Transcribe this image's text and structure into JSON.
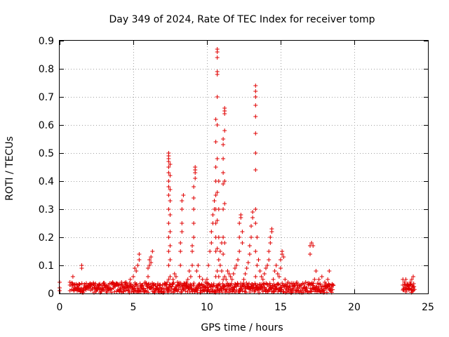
{
  "chart_data": {
    "type": "scatter",
    "title": "Day 349 of 2024, Rate Of TEC Index for receiver tomp",
    "xlabel": "GPS time / hours",
    "ylabel": "ROTI / TECUs",
    "xlim": [
      0,
      25
    ],
    "ylim": [
      0,
      0.9
    ],
    "xticks": [
      "0",
      "5",
      "10",
      "15",
      "20",
      "25"
    ],
    "yticks": [
      "0",
      "0.1",
      "0.2",
      "0.3",
      "0.4",
      "0.5",
      "0.6",
      "0.7",
      "0.8",
      "0.9"
    ],
    "grid": true,
    "marker": "+",
    "color": "#e00000",
    "series": [
      {
        "points": [
          [
            0.0,
            0.01
          ],
          [
            0.0,
            0.02
          ],
          [
            0.0,
            0.04
          ],
          [
            0.7,
            0.01
          ],
          [
            0.7,
            0.03
          ],
          [
            0.7,
            0.04
          ],
          [
            0.9,
            0.06
          ],
          [
            1.2,
            0.03
          ],
          [
            1.5,
            0.09
          ],
          [
            1.5,
            0.1
          ],
          [
            1.0,
            0.02
          ],
          [
            1.3,
            0.03
          ],
          [
            1.8,
            0.02
          ],
          [
            2.1,
            0.03
          ],
          [
            2.4,
            0.02
          ],
          [
            2.7,
            0.03
          ],
          [
            3.0,
            0.02
          ],
          [
            3.3,
            0.03
          ],
          [
            3.6,
            0.04
          ],
          [
            3.9,
            0.03
          ],
          [
            4.2,
            0.04
          ],
          [
            4.5,
            0.04
          ],
          [
            4.8,
            0.05
          ],
          [
            5.0,
            0.06
          ],
          [
            5.1,
            0.09
          ],
          [
            5.2,
            0.08
          ],
          [
            5.3,
            0.1
          ],
          [
            5.4,
            0.12
          ],
          [
            5.4,
            0.14
          ],
          [
            5.6,
            0.03
          ],
          [
            5.8,
            0.04
          ],
          [
            6.0,
            0.06
          ],
          [
            6.0,
            0.09
          ],
          [
            6.1,
            0.1
          ],
          [
            6.1,
            0.12
          ],
          [
            6.2,
            0.11
          ],
          [
            6.2,
            0.13
          ],
          [
            6.3,
            0.15
          ],
          [
            6.5,
            0.03
          ],
          [
            6.8,
            0.03
          ],
          [
            7.1,
            0.03
          ],
          [
            7.3,
            0.04
          ],
          [
            7.4,
            0.05
          ],
          [
            7.4,
            0.1
          ],
          [
            7.4,
            0.15
          ],
          [
            7.4,
            0.2
          ],
          [
            7.4,
            0.25
          ],
          [
            7.4,
            0.3
          ],
          [
            7.4,
            0.35
          ],
          [
            7.4,
            0.38
          ],
          [
            7.4,
            0.4
          ],
          [
            7.4,
            0.43
          ],
          [
            7.4,
            0.45
          ],
          [
            7.4,
            0.47
          ],
          [
            7.4,
            0.48
          ],
          [
            7.4,
            0.49
          ],
          [
            7.4,
            0.5
          ],
          [
            7.5,
            0.06
          ],
          [
            7.5,
            0.12
          ],
          [
            7.5,
            0.17
          ],
          [
            7.5,
            0.22
          ],
          [
            7.5,
            0.28
          ],
          [
            7.5,
            0.33
          ],
          [
            7.5,
            0.37
          ],
          [
            7.5,
            0.42
          ],
          [
            7.5,
            0.46
          ],
          [
            7.7,
            0.05
          ],
          [
            7.8,
            0.07
          ],
          [
            7.9,
            0.06
          ],
          [
            8.0,
            0.04
          ],
          [
            8.2,
            0.1
          ],
          [
            8.2,
            0.15
          ],
          [
            8.2,
            0.18
          ],
          [
            8.3,
            0.22
          ],
          [
            8.3,
            0.25
          ],
          [
            8.3,
            0.3
          ],
          [
            8.3,
            0.33
          ],
          [
            8.4,
            0.35
          ],
          [
            8.6,
            0.04
          ],
          [
            8.7,
            0.05
          ],
          [
            8.8,
            0.08
          ],
          [
            8.9,
            0.06
          ],
          [
            9.0,
            0.1
          ],
          [
            9.0,
            0.15
          ],
          [
            9.0,
            0.17
          ],
          [
            9.1,
            0.2
          ],
          [
            9.1,
            0.25
          ],
          [
            9.1,
            0.3
          ],
          [
            9.1,
            0.34
          ],
          [
            9.1,
            0.38
          ],
          [
            9.2,
            0.41
          ],
          [
            9.2,
            0.43
          ],
          [
            9.2,
            0.44
          ],
          [
            9.2,
            0.45
          ],
          [
            9.3,
            0.08
          ],
          [
            9.4,
            0.1
          ],
          [
            9.5,
            0.06
          ],
          [
            9.7,
            0.05
          ],
          [
            9.9,
            0.04
          ],
          [
            10.0,
            0.05
          ],
          [
            10.1,
            0.1
          ],
          [
            10.2,
            0.15
          ],
          [
            10.3,
            0.18
          ],
          [
            10.3,
            0.22
          ],
          [
            10.4,
            0.25
          ],
          [
            10.4,
            0.28
          ],
          [
            10.5,
            0.3
          ],
          [
            10.5,
            0.33
          ],
          [
            10.6,
            0.06
          ],
          [
            10.6,
            0.15
          ],
          [
            10.6,
            0.2
          ],
          [
            10.6,
            0.25
          ],
          [
            10.6,
            0.3
          ],
          [
            10.6,
            0.35
          ],
          [
            10.6,
            0.4
          ],
          [
            10.6,
            0.45
          ],
          [
            10.6,
            0.54
          ],
          [
            10.6,
            0.62
          ],
          [
            10.7,
            0.08
          ],
          [
            10.7,
            0.16
          ],
          [
            10.7,
            0.26
          ],
          [
            10.7,
            0.36
          ],
          [
            10.7,
            0.48
          ],
          [
            10.7,
            0.6
          ],
          [
            10.7,
            0.7
          ],
          [
            10.7,
            0.78
          ],
          [
            10.7,
            0.79
          ],
          [
            10.7,
            0.84
          ],
          [
            10.7,
            0.86
          ],
          [
            10.7,
            0.87
          ],
          [
            10.8,
            0.06
          ],
          [
            10.8,
            0.12
          ],
          [
            10.8,
            0.2
          ],
          [
            10.8,
            0.3
          ],
          [
            10.8,
            0.4
          ],
          [
            10.9,
            0.1
          ],
          [
            10.9,
            0.15
          ],
          [
            11.0,
            0.08
          ],
          [
            11.0,
            0.18
          ],
          [
            11.1,
            0.05
          ],
          [
            11.1,
            0.14
          ],
          [
            11.1,
            0.2
          ],
          [
            11.1,
            0.3
          ],
          [
            11.1,
            0.39
          ],
          [
            11.1,
            0.43
          ],
          [
            11.1,
            0.48
          ],
          [
            11.1,
            0.53
          ],
          [
            11.1,
            0.55
          ],
          [
            11.2,
            0.06
          ],
          [
            11.2,
            0.18
          ],
          [
            11.2,
            0.32
          ],
          [
            11.2,
            0.4
          ],
          [
            11.2,
            0.58
          ],
          [
            11.2,
            0.64
          ],
          [
            11.2,
            0.65
          ],
          [
            11.2,
            0.66
          ],
          [
            11.3,
            0.05
          ],
          [
            11.4,
            0.08
          ],
          [
            11.5,
            0.07
          ],
          [
            11.6,
            0.06
          ],
          [
            11.7,
            0.05
          ],
          [
            11.8,
            0.07
          ],
          [
            11.9,
            0.09
          ],
          [
            12.0,
            0.1
          ],
          [
            12.1,
            0.12
          ],
          [
            12.2,
            0.15
          ],
          [
            12.2,
            0.2
          ],
          [
            12.2,
            0.25
          ],
          [
            12.3,
            0.28
          ],
          [
            12.3,
            0.27
          ],
          [
            12.4,
            0.18
          ],
          [
            12.4,
            0.22
          ],
          [
            12.5,
            0.05
          ],
          [
            12.6,
            0.07
          ],
          [
            12.7,
            0.09
          ],
          [
            12.8,
            0.11
          ],
          [
            12.9,
            0.14
          ],
          [
            12.9,
            0.17
          ],
          [
            13.0,
            0.2
          ],
          [
            13.0,
            0.24
          ],
          [
            13.1,
            0.27
          ],
          [
            13.1,
            0.29
          ],
          [
            13.3,
            0.06
          ],
          [
            13.3,
            0.15
          ],
          [
            13.3,
            0.25
          ],
          [
            13.3,
            0.3
          ],
          [
            13.3,
            0.44
          ],
          [
            13.3,
            0.5
          ],
          [
            13.3,
            0.57
          ],
          [
            13.3,
            0.63
          ],
          [
            13.3,
            0.67
          ],
          [
            13.3,
            0.7
          ],
          [
            13.3,
            0.72
          ],
          [
            13.3,
            0.74
          ],
          [
            13.4,
            0.1
          ],
          [
            13.4,
            0.2
          ],
          [
            13.5,
            0.12
          ],
          [
            13.6,
            0.08
          ],
          [
            13.7,
            0.06
          ],
          [
            13.8,
            0.05
          ],
          [
            13.9,
            0.07
          ],
          [
            14.0,
            0.09
          ],
          [
            14.1,
            0.1
          ],
          [
            14.2,
            0.12
          ],
          [
            14.2,
            0.15
          ],
          [
            14.3,
            0.18
          ],
          [
            14.3,
            0.2
          ],
          [
            14.4,
            0.22
          ],
          [
            14.4,
            0.23
          ],
          [
            14.5,
            0.05
          ],
          [
            14.6,
            0.08
          ],
          [
            14.7,
            0.1
          ],
          [
            14.8,
            0.07
          ],
          [
            14.9,
            0.06
          ],
          [
            15.0,
            0.09
          ],
          [
            15.0,
            0.12
          ],
          [
            15.1,
            0.14
          ],
          [
            15.1,
            0.15
          ],
          [
            15.2,
            0.13
          ],
          [
            15.3,
            0.05
          ],
          [
            15.5,
            0.04
          ],
          [
            15.8,
            0.03
          ],
          [
            16.1,
            0.04
          ],
          [
            16.4,
            0.03
          ],
          [
            16.7,
            0.04
          ],
          [
            17.0,
            0.14
          ],
          [
            17.0,
            0.17
          ],
          [
            17.1,
            0.18
          ],
          [
            17.2,
            0.17
          ],
          [
            17.3,
            0.05
          ],
          [
            17.4,
            0.08
          ],
          [
            17.6,
            0.05
          ],
          [
            17.8,
            0.06
          ],
          [
            18.0,
            0.04
          ],
          [
            18.2,
            0.05
          ],
          [
            18.3,
            0.08
          ],
          [
            18.5,
            0.03
          ],
          [
            23.3,
            0.03
          ],
          [
            23.3,
            0.05
          ],
          [
            23.4,
            0.04
          ],
          [
            23.5,
            0.05
          ],
          [
            23.6,
            0.03
          ],
          [
            23.8,
            0.04
          ],
          [
            23.9,
            0.05
          ],
          [
            24.0,
            0.06
          ],
          [
            24.0,
            0.02
          ]
        ]
      }
    ],
    "bands": [
      {
        "from": 0.8,
        "to": 18.6,
        "max": 0.035
      },
      {
        "from": 23.3,
        "to": 24.1,
        "max": 0.035
      }
    ]
  }
}
